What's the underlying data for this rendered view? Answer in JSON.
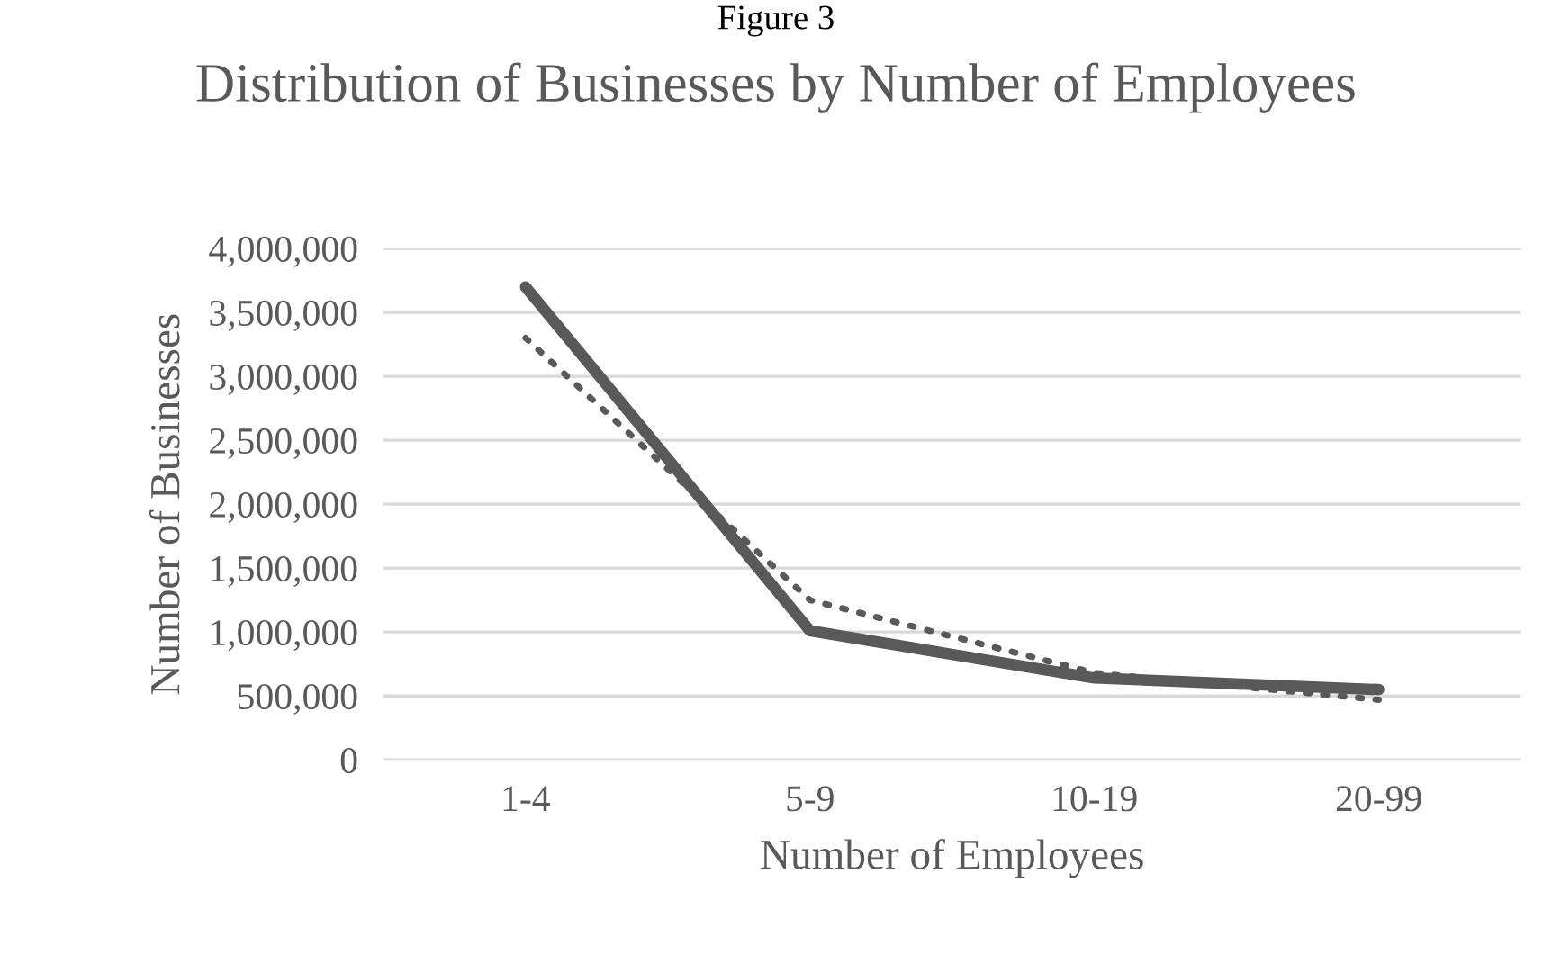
{
  "chart_data": {
    "type": "line",
    "title": "Distribution of Businesses by Number of Employees",
    "xlabel": "Number of Employees",
    "ylabel": "Number of Businesses",
    "annotations": [
      "Figure 3"
    ],
    "categories": [
      "1-4",
      "5-9",
      "10-19",
      "20-99"
    ],
    "series": [
      {
        "color": "#595959",
        "values": [
          3700000,
          1010000,
          640000,
          550000
        ],
        "line_style": "solid"
      },
      {
        "color": "#595959",
        "values": [
          3300000,
          1250000,
          680000,
          470000
        ],
        "line_style": "dotted"
      }
    ],
    "ylim": [
      0,
      4000000
    ],
    "yticks": [
      {
        "value": 0,
        "label": "0"
      },
      {
        "value": 500000,
        "label": "500,000"
      },
      {
        "value": 1000000,
        "label": "1,000,000"
      },
      {
        "value": 1500000,
        "label": "1,500,000"
      },
      {
        "value": 2000000,
        "label": "2,000,000"
      },
      {
        "value": 2500000,
        "label": "2,500,000"
      },
      {
        "value": 3000000,
        "label": "3,000,000"
      },
      {
        "value": 3500000,
        "label": "3,500,000"
      },
      {
        "value": 4000000,
        "label": "4,000,000"
      }
    ],
    "grid": "y",
    "legend": false,
    "marker": "none"
  }
}
